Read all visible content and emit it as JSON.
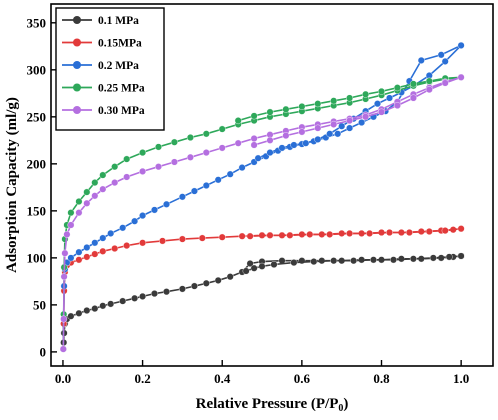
{
  "chart_data": {
    "type": "scatter",
    "xlabel": "Relative Pressure (P/P",
    "xlabel_sub": "0",
    "xlabel_end": ")",
    "ylabel": "Adsorption Capacity (ml/g)",
    "xlim": [
      -0.03,
      1.08
    ],
    "ylim": [
      -15,
      370
    ],
    "x_ticks": [
      0.0,
      0.2,
      0.4,
      0.6,
      0.8,
      1.0
    ],
    "x_tick_labels": [
      "0.0",
      "0.2",
      "0.4",
      "0.6",
      "0.8",
      "1.0"
    ],
    "y_ticks": [
      0,
      50,
      100,
      150,
      200,
      250,
      300,
      350
    ],
    "y_tick_labels": [
      "0",
      "50",
      "100",
      "150",
      "200",
      "250",
      "300",
      "350"
    ],
    "legend_position": "top-left",
    "grid": false,
    "series": [
      {
        "name": "0.1 MPa",
        "color": "#3a3a3a",
        "adsorption": [
          [
            0.001,
            3
          ],
          [
            0.002,
            10
          ],
          [
            0.003,
            20
          ],
          [
            0.005,
            30
          ],
          [
            0.01,
            35
          ],
          [
            0.02,
            38
          ],
          [
            0.04,
            41
          ],
          [
            0.06,
            44
          ],
          [
            0.08,
            46
          ],
          [
            0.1,
            49
          ],
          [
            0.12,
            51
          ],
          [
            0.15,
            54
          ],
          [
            0.18,
            57
          ],
          [
            0.2,
            59
          ],
          [
            0.23,
            62
          ],
          [
            0.26,
            64
          ],
          [
            0.3,
            67
          ],
          [
            0.33,
            70
          ],
          [
            0.36,
            73
          ],
          [
            0.39,
            76
          ],
          [
            0.42,
            80
          ],
          [
            0.45,
            85
          ],
          [
            0.47,
            94
          ],
          [
            0.5,
            96
          ],
          [
            0.55,
            97
          ],
          [
            0.6,
            97
          ],
          [
            0.65,
            97
          ],
          [
            0.7,
            97
          ],
          [
            0.75,
            98
          ],
          [
            0.8,
            98
          ],
          [
            0.85,
            99
          ],
          [
            0.9,
            99
          ],
          [
            0.95,
            100
          ],
          [
            0.98,
            101
          ],
          [
            1.0,
            102
          ]
        ],
        "desorption": [
          [
            1.0,
            102
          ],
          [
            0.97,
            101
          ],
          [
            0.93,
            100
          ],
          [
            0.88,
            99
          ],
          [
            0.83,
            98
          ],
          [
            0.78,
            98
          ],
          [
            0.73,
            97
          ],
          [
            0.68,
            97
          ],
          [
            0.63,
            96
          ],
          [
            0.58,
            95
          ],
          [
            0.53,
            93
          ],
          [
            0.5,
            91
          ],
          [
            0.48,
            89
          ],
          [
            0.46,
            86
          ]
        ]
      },
      {
        "name": "0.15MPa",
        "color": "#e23a3a",
        "adsorption": [
          [
            0.001,
            3
          ],
          [
            0.002,
            30
          ],
          [
            0.003,
            65
          ],
          [
            0.005,
            85
          ],
          [
            0.01,
            92
          ],
          [
            0.02,
            95
          ],
          [
            0.04,
            98
          ],
          [
            0.06,
            101
          ],
          [
            0.08,
            104
          ],
          [
            0.1,
            107
          ],
          [
            0.13,
            110
          ],
          [
            0.16,
            113
          ],
          [
            0.2,
            116
          ],
          [
            0.25,
            118
          ],
          [
            0.3,
            120
          ],
          [
            0.35,
            121
          ],
          [
            0.4,
            122
          ],
          [
            0.45,
            123
          ],
          [
            0.5,
            124
          ],
          [
            0.55,
            124
          ],
          [
            0.6,
            125
          ],
          [
            0.65,
            125
          ],
          [
            0.7,
            126
          ],
          [
            0.75,
            126
          ],
          [
            0.8,
            127
          ],
          [
            0.85,
            127
          ],
          [
            0.9,
            128
          ],
          [
            0.95,
            129
          ],
          [
            0.98,
            130
          ],
          [
            1.0,
            131
          ]
        ],
        "desorption": [
          [
            1.0,
            131
          ],
          [
            0.96,
            129
          ],
          [
            0.92,
            128
          ],
          [
            0.87,
            127
          ],
          [
            0.82,
            127
          ],
          [
            0.77,
            126
          ],
          [
            0.72,
            126
          ],
          [
            0.67,
            125
          ],
          [
            0.62,
            125
          ],
          [
            0.57,
            124
          ],
          [
            0.52,
            124
          ],
          [
            0.47,
            123
          ]
        ]
      },
      {
        "name": "0.2 MPa",
        "color": "#2a6fd6",
        "adsorption": [
          [
            0.001,
            3
          ],
          [
            0.002,
            40
          ],
          [
            0.003,
            70
          ],
          [
            0.005,
            88
          ],
          [
            0.01,
            95
          ],
          [
            0.02,
            100
          ],
          [
            0.04,
            106
          ],
          [
            0.06,
            111
          ],
          [
            0.08,
            116
          ],
          [
            0.1,
            121
          ],
          [
            0.12,
            126
          ],
          [
            0.15,
            132
          ],
          [
            0.18,
            139
          ],
          [
            0.2,
            145
          ],
          [
            0.23,
            151
          ],
          [
            0.26,
            157
          ],
          [
            0.3,
            165
          ],
          [
            0.33,
            171
          ],
          [
            0.36,
            177
          ],
          [
            0.39,
            183
          ],
          [
            0.42,
            189
          ],
          [
            0.45,
            196
          ],
          [
            0.48,
            202
          ],
          [
            0.51,
            208
          ],
          [
            0.54,
            214
          ],
          [
            0.57,
            218
          ],
          [
            0.6,
            221
          ],
          [
            0.63,
            224
          ],
          [
            0.66,
            228
          ],
          [
            0.69,
            232
          ],
          [
            0.72,
            238
          ],
          [
            0.75,
            244
          ],
          [
            0.78,
            250
          ],
          [
            0.81,
            256
          ],
          [
            0.84,
            266
          ],
          [
            0.87,
            288
          ],
          [
            0.9,
            310
          ],
          [
            0.95,
            316
          ],
          [
            1.0,
            326
          ]
        ],
        "desorption": [
          [
            1.0,
            326
          ],
          [
            0.96,
            309
          ],
          [
            0.92,
            294
          ],
          [
            0.88,
            283
          ],
          [
            0.85,
            276
          ],
          [
            0.82,
            270
          ],
          [
            0.79,
            264
          ],
          [
            0.76,
            256
          ],
          [
            0.73,
            248
          ],
          [
            0.7,
            240
          ],
          [
            0.67,
            232
          ],
          [
            0.64,
            226
          ],
          [
            0.61,
            222
          ],
          [
            0.58,
            220
          ],
          [
            0.55,
            217
          ],
          [
            0.52,
            212
          ],
          [
            0.49,
            206
          ]
        ]
      },
      {
        "name": "0.25 MPa",
        "color": "#2ea85a",
        "adsorption": [
          [
            0.001,
            3
          ],
          [
            0.002,
            40
          ],
          [
            0.003,
            90
          ],
          [
            0.005,
            120
          ],
          [
            0.01,
            135
          ],
          [
            0.02,
            148
          ],
          [
            0.04,
            160
          ],
          [
            0.06,
            170
          ],
          [
            0.08,
            180
          ],
          [
            0.1,
            188
          ],
          [
            0.13,
            197
          ],
          [
            0.16,
            205
          ],
          [
            0.2,
            212
          ],
          [
            0.24,
            218
          ],
          [
            0.28,
            223
          ],
          [
            0.32,
            228
          ],
          [
            0.36,
            232
          ],
          [
            0.4,
            237
          ],
          [
            0.44,
            242
          ],
          [
            0.48,
            246
          ],
          [
            0.52,
            250
          ],
          [
            0.56,
            253
          ],
          [
            0.6,
            256
          ],
          [
            0.64,
            259
          ],
          [
            0.68,
            262
          ],
          [
            0.72,
            265
          ],
          [
            0.76,
            269
          ],
          [
            0.8,
            273
          ],
          [
            0.84,
            278
          ],
          [
            0.88,
            283
          ],
          [
            0.92,
            287
          ],
          [
            0.96,
            290
          ],
          [
            1.0,
            292
          ]
        ],
        "desorption": [
          [
            1.0,
            292
          ],
          [
            0.96,
            291
          ],
          [
            0.92,
            288
          ],
          [
            0.88,
            285
          ],
          [
            0.84,
            281
          ],
          [
            0.8,
            277
          ],
          [
            0.76,
            274
          ],
          [
            0.72,
            270
          ],
          [
            0.68,
            267
          ],
          [
            0.64,
            264
          ],
          [
            0.6,
            261
          ],
          [
            0.56,
            258
          ],
          [
            0.52,
            255
          ],
          [
            0.48,
            251
          ],
          [
            0.44,
            246
          ]
        ]
      },
      {
        "name": "0.30 MPa",
        "color": "#b46fe0",
        "adsorption": [
          [
            0.001,
            3
          ],
          [
            0.002,
            35
          ],
          [
            0.003,
            80
          ],
          [
            0.005,
            105
          ],
          [
            0.01,
            125
          ],
          [
            0.02,
            135
          ],
          [
            0.04,
            148
          ],
          [
            0.06,
            158
          ],
          [
            0.08,
            166
          ],
          [
            0.1,
            173
          ],
          [
            0.13,
            180
          ],
          [
            0.16,
            186
          ],
          [
            0.2,
            192
          ],
          [
            0.24,
            197
          ],
          [
            0.28,
            202
          ],
          [
            0.32,
            207
          ],
          [
            0.36,
            212
          ],
          [
            0.4,
            217
          ],
          [
            0.44,
            222
          ],
          [
            0.48,
            227
          ],
          [
            0.52,
            231
          ],
          [
            0.56,
            235
          ],
          [
            0.6,
            239
          ],
          [
            0.64,
            242
          ],
          [
            0.68,
            245
          ],
          [
            0.72,
            248
          ],
          [
            0.76,
            252
          ],
          [
            0.8,
            258
          ],
          [
            0.84,
            266
          ],
          [
            0.88,
            274
          ],
          [
            0.92,
            281
          ],
          [
            0.96,
            287
          ],
          [
            1.0,
            292
          ]
        ],
        "desorption": [
          [
            1.0,
            292
          ],
          [
            0.96,
            286
          ],
          [
            0.92,
            279
          ],
          [
            0.88,
            270
          ],
          [
            0.84,
            262
          ],
          [
            0.8,
            255
          ],
          [
            0.76,
            250
          ],
          [
            0.72,
            246
          ],
          [
            0.68,
            242
          ],
          [
            0.64,
            238
          ],
          [
            0.6,
            234
          ],
          [
            0.56,
            230
          ],
          [
            0.52,
            225
          ],
          [
            0.48,
            220
          ]
        ]
      }
    ]
  }
}
